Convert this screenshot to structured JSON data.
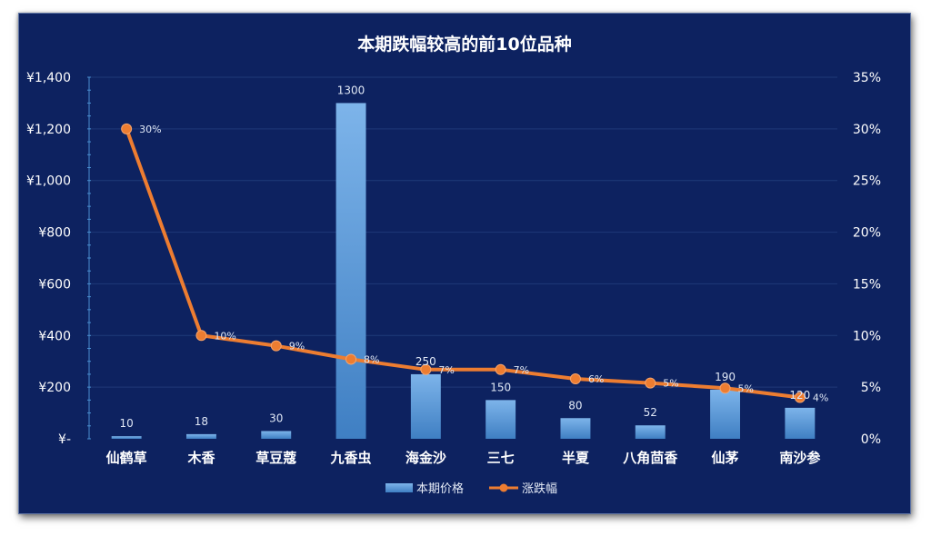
{
  "chart_data": {
    "type": "bar",
    "title": "本期跌幅较高的前10位品种",
    "categories": [
      "仙鹤草",
      "木香",
      "草豆蔻",
      "九香虫",
      "海金沙",
      "三七",
      "半夏",
      "八角茴香",
      "仙茅",
      "南沙参"
    ],
    "series": [
      {
        "name": "本期价格",
        "type": "bar",
        "axis": "left",
        "values": [
          10,
          18,
          30,
          1300,
          250,
          150,
          80,
          52,
          190,
          120
        ],
        "labels": [
          "10",
          "18",
          "30",
          "1300",
          "250",
          "150",
          "80",
          "52",
          "190",
          "120"
        ],
        "color": "#5b9bd5"
      },
      {
        "name": "涨跌幅",
        "type": "line",
        "axis": "right",
        "values": [
          0.3,
          0.1,
          0.09,
          0.077,
          0.067,
          0.067,
          0.058,
          0.054,
          0.049,
          0.04
        ],
        "labels": [
          "30%",
          "10%",
          "9%",
          "8%",
          "7%",
          "7%",
          "6%",
          "5%",
          "5%",
          "4%"
        ],
        "color": "#ed7d31"
      }
    ],
    "y_left": {
      "min": 0,
      "max": 1400,
      "ticks": [
        0,
        200,
        400,
        600,
        800,
        1000,
        1200,
        1400
      ],
      "tick_labels": [
        "¥-",
        "¥200",
        "¥400",
        "¥600",
        "¥800",
        "¥1,000",
        "¥1,200",
        "¥1,400"
      ]
    },
    "y_right": {
      "min": 0,
      "max": 0.35,
      "ticks": [
        0,
        0.05,
        0.1,
        0.15,
        0.2,
        0.25,
        0.3,
        0.35
      ],
      "tick_labels": [
        "0%",
        "5%",
        "10%",
        "15%",
        "20%",
        "25%",
        "30%",
        "35%"
      ]
    },
    "grid": true,
    "legend_position": "bottom",
    "colors": {
      "background": "#0d2260",
      "gridline": "#1f3a78",
      "axis": "#4a8fd0",
      "text": "#ffffff"
    }
  }
}
